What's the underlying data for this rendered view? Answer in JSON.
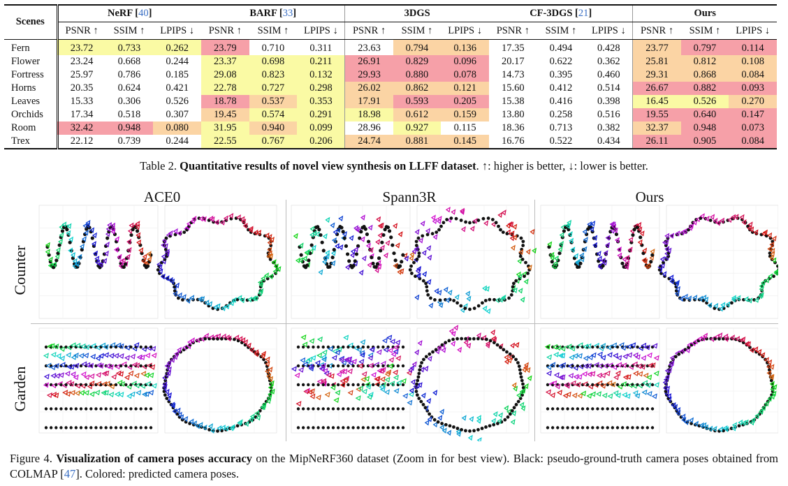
{
  "table": {
    "scenes_header": "Scenes",
    "groups": [
      {
        "name": "NeRF",
        "ref": "40"
      },
      {
        "name": "BARF",
        "ref": "33"
      },
      {
        "name": "3DGS",
        "ref": ""
      },
      {
        "name": "CF-3DGS",
        "ref": "21"
      },
      {
        "name": "Ours",
        "ref": ""
      }
    ],
    "metrics": [
      "PSNR ↑",
      "SSIM ↑",
      "LPIPS ↓"
    ],
    "rows": [
      {
        "scene": "Fern",
        "v": [
          "23.72",
          "0.733",
          "0.262",
          "23.79",
          "0.710",
          "0.311",
          "23.63",
          "0.794",
          "0.136",
          "17.35",
          "0.494",
          "0.428",
          "23.77",
          "0.797",
          "0.114"
        ],
        "c": [
          3,
          3,
          3,
          1,
          0,
          0,
          0,
          2,
          2,
          0,
          0,
          0,
          2,
          1,
          1
        ]
      },
      {
        "scene": "Flower",
        "v": [
          "23.24",
          "0.668",
          "0.244",
          "23.37",
          "0.698",
          "0.211",
          "26.91",
          "0.829",
          "0.096",
          "20.17",
          "0.622",
          "0.362",
          "25.81",
          "0.812",
          "0.108"
        ],
        "c": [
          0,
          0,
          0,
          3,
          3,
          3,
          1,
          1,
          1,
          0,
          0,
          0,
          2,
          2,
          2
        ]
      },
      {
        "scene": "Fortress",
        "v": [
          "25.97",
          "0.786",
          "0.185",
          "29.08",
          "0.823",
          "0.132",
          "29.93",
          "0.880",
          "0.078",
          "14.73",
          "0.395",
          "0.460",
          "29.31",
          "0.868",
          "0.084"
        ],
        "c": [
          0,
          0,
          0,
          3,
          3,
          3,
          1,
          1,
          1,
          0,
          0,
          0,
          2,
          2,
          2
        ]
      },
      {
        "scene": "Horns",
        "v": [
          "20.35",
          "0.624",
          "0.421",
          "22.78",
          "0.727",
          "0.298",
          "26.02",
          "0.862",
          "0.121",
          "15.60",
          "0.412",
          "0.514",
          "26.67",
          "0.882",
          "0.093"
        ],
        "c": [
          0,
          0,
          0,
          3,
          3,
          3,
          2,
          2,
          2,
          0,
          0,
          0,
          1,
          1,
          1
        ]
      },
      {
        "scene": "Leaves",
        "v": [
          "15.33",
          "0.306",
          "0.526",
          "18.78",
          "0.537",
          "0.353",
          "17.91",
          "0.593",
          "0.205",
          "15.38",
          "0.416",
          "0.398",
          "16.45",
          "0.526",
          "0.270"
        ],
        "c": [
          0,
          0,
          0,
          1,
          2,
          3,
          2,
          1,
          1,
          0,
          0,
          0,
          3,
          3,
          2
        ]
      },
      {
        "scene": "Orchids",
        "v": [
          "17.34",
          "0.518",
          "0.307",
          "19.45",
          "0.574",
          "0.291",
          "18.98",
          "0.612",
          "0.159",
          "13.80",
          "0.258",
          "0.516",
          "19.55",
          "0.640",
          "0.147"
        ],
        "c": [
          0,
          0,
          0,
          2,
          3,
          3,
          3,
          2,
          2,
          0,
          0,
          0,
          1,
          1,
          1
        ]
      },
      {
        "scene": "Room",
        "v": [
          "32.42",
          "0.948",
          "0.080",
          "31.95",
          "0.940",
          "0.099",
          "28.96",
          "0.927",
          "0.115",
          "18.36",
          "0.713",
          "0.382",
          "32.37",
          "0.948",
          "0.073"
        ],
        "c": [
          1,
          1,
          2,
          3,
          2,
          3,
          0,
          3,
          0,
          0,
          0,
          0,
          2,
          1,
          1
        ]
      },
      {
        "scene": "Trex",
        "v": [
          "22.12",
          "0.739",
          "0.244",
          "22.55",
          "0.767",
          "0.206",
          "24.74",
          "0.881",
          "0.145",
          "16.76",
          "0.522",
          "0.434",
          "26.11",
          "0.905",
          "0.084"
        ],
        "c": [
          0,
          0,
          0,
          3,
          3,
          3,
          2,
          2,
          2,
          0,
          0,
          0,
          1,
          1,
          1
        ]
      }
    ]
  },
  "caption_table": {
    "prefix": "Table 2. ",
    "bold": "Quantitative results of novel view synthesis on LLFF dataset",
    "rest": ". ↑: higher is better, ↓: lower is better."
  },
  "figure": {
    "methods": [
      "ACE0",
      "Spann3R",
      "Ours"
    ],
    "rows": [
      "Counter",
      "Garden"
    ]
  },
  "caption_figure": {
    "prefix": "Figure 4.  ",
    "bold": "Visualization of camera poses accuracy",
    "mid": " on the MipNeRF360 dataset (Zoom in for best view).  Black:  pseudo-ground-truth camera poses obtained from COLMAP [",
    "ref": "47",
    "rest": "]. Colored:  predicted camera poses."
  },
  "colors": {
    "best": "#f6a0a8",
    "second": "#fbd4a4",
    "third": "#fafaa4"
  }
}
